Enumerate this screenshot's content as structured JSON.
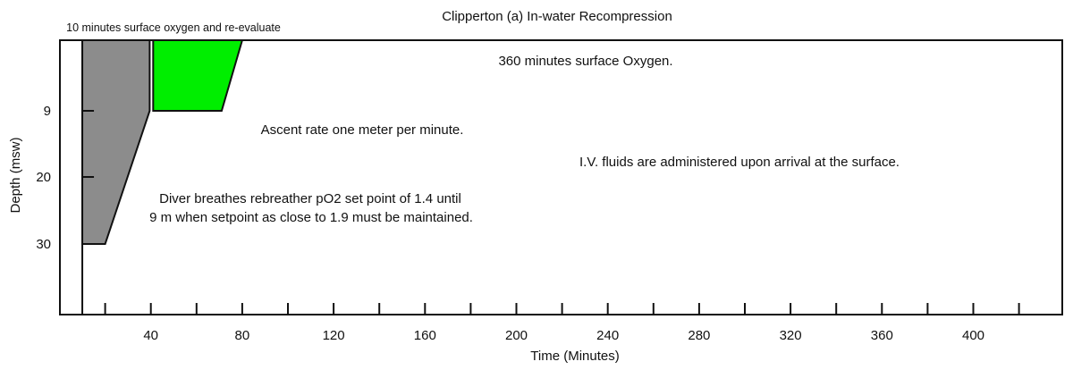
{
  "title": "Clipperton (a) In-water Recompression",
  "annotations": {
    "surface_oxygen_10": "10 minutes surface oxygen and re-evaluate",
    "surface_oxygen_360": "360 minutes surface Oxygen.",
    "ascent_rate": "Ascent rate one meter per minute.",
    "iv_fluids": "I.V. fluids are administered upon arrival at the surface.",
    "rebreather_line1": "Diver breathes rebreather pO2 set point of 1.4 until",
    "rebreather_line2": "9 m when setpoint as close to 1.9 must be maintained."
  },
  "colors": {
    "line": "#111111",
    "background": "#ffffff",
    "recompression_fill": "#8c8c8c",
    "oxygen_hold_fill": "#00ee00"
  },
  "chart_data": {
    "type": "area",
    "title": "Clipperton (a) In-water Recompression",
    "xlabel": "Time (Minutes)",
    "ylabel": "Depth (msw)",
    "xlim": [
      0,
      439
    ],
    "depth_lim": [
      0,
      41
    ],
    "grid": false,
    "legend": "none",
    "x_ticks": [
      20,
      40,
      60,
      80,
      100,
      120,
      140,
      160,
      180,
      200,
      220,
      240,
      260,
      280,
      300,
      320,
      340,
      360,
      380,
      400,
      420
    ],
    "x_labeled_ticks": [
      40,
      80,
      120,
      160,
      200,
      240,
      280,
      320,
      360,
      400
    ],
    "y_ticks": [
      9,
      20,
      30
    ],
    "surface_interval_line_minutes": 10,
    "profile_time_depth": [
      [
        10,
        0
      ],
      [
        10,
        30
      ],
      [
        20,
        30
      ],
      [
        41,
        9
      ],
      [
        71,
        9
      ],
      [
        80,
        0
      ]
    ],
    "series": [
      {
        "key": "recompression-phase",
        "color": "#8c8c8c",
        "polygon_time_depth": [
          [
            10,
            0
          ],
          [
            39.5,
            0
          ],
          [
            39.5,
            9
          ],
          [
            20,
            30
          ],
          [
            10,
            30
          ]
        ]
      },
      {
        "key": "oxygen-hold-9msw-phase",
        "color": "#00ee00",
        "polygon_time_depth": [
          [
            41,
            0
          ],
          [
            80,
            0
          ],
          [
            71,
            9
          ],
          [
            41,
            9
          ]
        ]
      }
    ]
  }
}
